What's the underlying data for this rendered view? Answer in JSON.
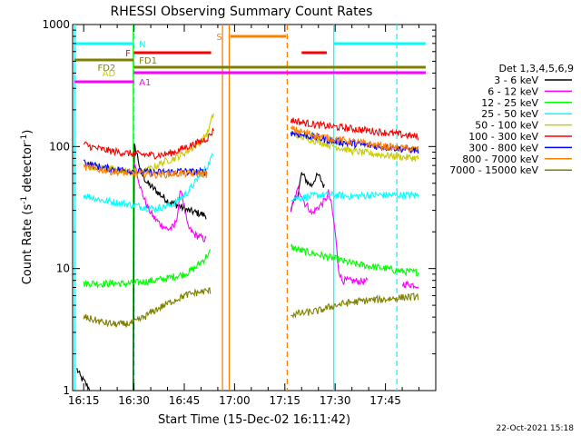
{
  "chart_data": {
    "type": "line",
    "title": "RHESSI Observing Summary Count Rates",
    "xlabel": "Start Time (15-Dec-02 16:11:42)",
    "ylabel": "Count Rate (s",
    "ylabel_sup": "-1",
    "ylabel_mid": " detector",
    "ylabel_end": ")",
    "x_unit": "minutes of day (UT), 15-Dec-2002",
    "xlim": [
      971.7,
      1080
    ],
    "ylim": [
      1,
      1000
    ],
    "y_scale": "log",
    "x_ticks": [
      {
        "t": 975,
        "label": "16:15"
      },
      {
        "t": 990,
        "label": "16:30"
      },
      {
        "t": 1005,
        "label": "16:45"
      },
      {
        "t": 1020,
        "label": "17:00"
      },
      {
        "t": 1035,
        "label": "17:15"
      },
      {
        "t": 1050,
        "label": "17:30"
      },
      {
        "t": 1065,
        "label": "17:45"
      }
    ],
    "y_ticks": [
      {
        "v": 1,
        "label": "1"
      },
      {
        "v": 10,
        "label": "10"
      },
      {
        "v": 100,
        "label": "100"
      },
      {
        "v": 1000,
        "label": "1000"
      }
    ],
    "legend_title": "Det 1,3,4,5,6,9",
    "legend_position": "right",
    "timestamp": "22-Oct-2021 15:18",
    "gap_ranges": [
      [
        1017.5,
        1036.8
      ]
    ],
    "series": [
      {
        "name": "3 - 6 keV",
        "color": "#000000",
        "points": [
          [
            973,
            1.5
          ],
          [
            974,
            1.3
          ],
          [
            975,
            1.2
          ],
          [
            976,
            1.1
          ],
          [
            977,
            1.0
          ],
          [
            989.8,
            1.0
          ],
          [
            990.1,
            100
          ],
          [
            991,
            85
          ],
          [
            992,
            62
          ],
          [
            994,
            50
          ],
          [
            996,
            45
          ],
          [
            998,
            40
          ],
          [
            1000,
            36
          ],
          [
            1002,
            34
          ],
          [
            1004,
            32
          ],
          [
            1006,
            30
          ],
          [
            1008,
            29
          ],
          [
            1010,
            28
          ],
          [
            1011.7,
            27
          ],
          [
            1036.8,
            30
          ],
          [
            1038,
            36
          ],
          [
            1039,
            42
          ],
          [
            1040,
            60
          ],
          [
            1041,
            55
          ],
          [
            1042,
            50
          ],
          [
            1043,
            48
          ],
          [
            1044,
            55
          ],
          [
            1045,
            58
          ],
          [
            1046,
            52
          ],
          [
            1047,
            45
          ]
        ]
      },
      {
        "name": "6 - 12 keV",
        "color": "#ff00ff",
        "points": [
          [
            990.1,
            75
          ],
          [
            991,
            60
          ],
          [
            992,
            45
          ],
          [
            994,
            32
          ],
          [
            996,
            26
          ],
          [
            998,
            23
          ],
          [
            1000,
            21
          ],
          [
            1002,
            22
          ],
          [
            1003,
            28
          ],
          [
            1004,
            46
          ],
          [
            1005,
            32
          ],
          [
            1006,
            22
          ],
          [
            1008,
            19
          ],
          [
            1010,
            18
          ],
          [
            1011.7,
            17
          ],
          [
            1036.8,
            30
          ],
          [
            1038,
            38
          ],
          [
            1039,
            45
          ],
          [
            1040,
            40
          ],
          [
            1041,
            34
          ],
          [
            1042,
            32
          ],
          [
            1043,
            28
          ],
          [
            1044,
            30
          ],
          [
            1046,
            34
          ],
          [
            1047,
            36
          ],
          [
            1048,
            42
          ],
          [
            1049,
            32
          ],
          [
            1050,
            20
          ],
          [
            1051,
            10
          ],
          [
            1052,
            8
          ],
          [
            1060,
            7.8
          ],
          [
            1070,
            7.5
          ],
          [
            1075,
            7.3
          ]
        ]
      },
      {
        "name": "12 - 25 keV",
        "color": "#00ff00",
        "points": [
          [
            975,
            7.5
          ],
          [
            978,
            7.6
          ],
          [
            981,
            7.5
          ],
          [
            984,
            7.6
          ],
          [
            987,
            7.5
          ],
          [
            990,
            7.6
          ],
          [
            993,
            7.8
          ],
          [
            996,
            8.0
          ],
          [
            999,
            8.2
          ],
          [
            1002,
            8.6
          ],
          [
            1005,
            9.0
          ],
          [
            1008,
            10
          ],
          [
            1011,
            12
          ],
          [
            1012,
            13
          ],
          [
            1013,
            14
          ],
          [
            1036.8,
            15
          ],
          [
            1040,
            14
          ],
          [
            1045,
            13
          ],
          [
            1050,
            12
          ],
          [
            1055,
            11
          ],
          [
            1060,
            10.5
          ],
          [
            1065,
            10
          ],
          [
            1070,
            9.5
          ],
          [
            1075,
            9.3
          ]
        ]
      },
      {
        "name": "25 - 50 keV",
        "color": "#00ffff",
        "points": [
          [
            975,
            40
          ],
          [
            978,
            38
          ],
          [
            981,
            36
          ],
          [
            984,
            35
          ],
          [
            987,
            34
          ],
          [
            990,
            33
          ],
          [
            993,
            32
          ],
          [
            996,
            31
          ],
          [
            999,
            32
          ],
          [
            1002,
            34
          ],
          [
            1004,
            38
          ],
          [
            1006,
            42
          ],
          [
            1008,
            50
          ],
          [
            1010,
            60
          ],
          [
            1012,
            70
          ],
          [
            1013,
            80
          ],
          [
            1014,
            88
          ],
          [
            1036.8,
            38
          ],
          [
            1040,
            38
          ],
          [
            1045,
            40
          ],
          [
            1050,
            40
          ],
          [
            1055,
            39
          ],
          [
            1060,
            40
          ],
          [
            1065,
            40
          ],
          [
            1070,
            40
          ],
          [
            1075,
            40
          ]
        ]
      },
      {
        "name": "50 - 100 keV",
        "color": "#cccc00",
        "points": [
          [
            975,
            72
          ],
          [
            978,
            68
          ],
          [
            981,
            66
          ],
          [
            984,
            65
          ],
          [
            987,
            63
          ],
          [
            990,
            62
          ],
          [
            993,
            62
          ],
          [
            996,
            68
          ],
          [
            999,
            75
          ],
          [
            1002,
            80
          ],
          [
            1004,
            85
          ],
          [
            1006,
            92
          ],
          [
            1008,
            100
          ],
          [
            1010,
            110
          ],
          [
            1012,
            130
          ],
          [
            1013,
            160
          ],
          [
            1014,
            200
          ],
          [
            1036.8,
            130
          ],
          [
            1040,
            120
          ],
          [
            1045,
            110
          ],
          [
            1050,
            100
          ],
          [
            1055,
            92
          ],
          [
            1060,
            88
          ],
          [
            1065,
            85
          ],
          [
            1070,
            82
          ],
          [
            1075,
            80
          ]
        ]
      },
      {
        "name": "100 - 300 keV",
        "color": "#ff0000",
        "points": [
          [
            975,
            105
          ],
          [
            978,
            98
          ],
          [
            981,
            94
          ],
          [
            984,
            91
          ],
          [
            987,
            89
          ],
          [
            990,
            87
          ],
          [
            993,
            86
          ],
          [
            996,
            85
          ],
          [
            999,
            86
          ],
          [
            1002,
            90
          ],
          [
            1004,
            95
          ],
          [
            1006,
            100
          ],
          [
            1008,
            105
          ],
          [
            1010,
            110
          ],
          [
            1012,
            118
          ],
          [
            1013,
            128
          ],
          [
            1014,
            140
          ],
          [
            1036.8,
            165
          ],
          [
            1040,
            158
          ],
          [
            1045,
            150
          ],
          [
            1050,
            145
          ],
          [
            1055,
            140
          ],
          [
            1060,
            135
          ],
          [
            1065,
            130
          ],
          [
            1070,
            125
          ],
          [
            1075,
            120
          ]
        ]
      },
      {
        "name": "300 - 800 keV",
        "color": "#0000ff",
        "points": [
          [
            975,
            75
          ],
          [
            978,
            70
          ],
          [
            981,
            67
          ],
          [
            984,
            65
          ],
          [
            987,
            64
          ],
          [
            990,
            63
          ],
          [
            993,
            62
          ],
          [
            996,
            61
          ],
          [
            999,
            62
          ],
          [
            1002,
            62
          ],
          [
            1004,
            63
          ],
          [
            1006,
            62
          ],
          [
            1008,
            62
          ],
          [
            1010,
            62
          ],
          [
            1012,
            62
          ],
          [
            1036.8,
            130
          ],
          [
            1040,
            125
          ],
          [
            1045,
            118
          ],
          [
            1050,
            110
          ],
          [
            1055,
            106
          ],
          [
            1060,
            102
          ],
          [
            1065,
            99
          ],
          [
            1070,
            96
          ],
          [
            1075,
            93
          ]
        ]
      },
      {
        "name": "800 - 7000 keV",
        "color": "#ff8000",
        "points": [
          [
            975,
            68
          ],
          [
            978,
            66
          ],
          [
            981,
            64
          ],
          [
            984,
            62
          ],
          [
            987,
            61
          ],
          [
            990,
            60
          ],
          [
            993,
            60
          ],
          [
            996,
            59
          ],
          [
            999,
            59
          ],
          [
            1002,
            60
          ],
          [
            1004,
            60
          ],
          [
            1006,
            60
          ],
          [
            1008,
            60
          ],
          [
            1010,
            60
          ],
          [
            1012,
            59
          ],
          [
            1036.8,
            140
          ],
          [
            1040,
            132
          ],
          [
            1045,
            122
          ],
          [
            1050,
            115
          ],
          [
            1055,
            110
          ],
          [
            1060,
            105
          ],
          [
            1065,
            100
          ],
          [
            1070,
            97
          ],
          [
            1075,
            95
          ]
        ]
      },
      {
        "name": "7000 - 15000 keV",
        "color": "#808000",
        "points": [
          [
            975,
            4.0
          ],
          [
            978,
            3.8
          ],
          [
            981,
            3.6
          ],
          [
            984,
            3.5
          ],
          [
            987,
            3.5
          ],
          [
            990,
            3.6
          ],
          [
            993,
            4.0
          ],
          [
            996,
            4.5
          ],
          [
            999,
            5.0
          ],
          [
            1002,
            5.5
          ],
          [
            1005,
            6.0
          ],
          [
            1008,
            6.3
          ],
          [
            1011,
            6.5
          ],
          [
            1013,
            6.6
          ],
          [
            1036.8,
            4.2
          ],
          [
            1040,
            4.3
          ],
          [
            1045,
            4.5
          ],
          [
            1050,
            5.0
          ],
          [
            1055,
            5.3
          ],
          [
            1060,
            5.5
          ],
          [
            1065,
            5.6
          ],
          [
            1070,
            5.8
          ],
          [
            1075,
            5.9
          ]
        ]
      }
    ],
    "vlines": [
      {
        "t": 972.3,
        "color": "#00ffff",
        "style": "solid"
      },
      {
        "t": 990.0,
        "color": "#00ffff",
        "style": "dash"
      },
      {
        "t": 989.8,
        "color": "#00ff00",
        "style": "solid"
      },
      {
        "t": 1016.4,
        "color": "#ff8000",
        "style": "solid"
      },
      {
        "t": 1018.4,
        "color": "#ff8000",
        "style": "solid"
      },
      {
        "t": 1035.7,
        "color": "#ff8000",
        "style": "dash"
      },
      {
        "t": 1049.6,
        "color": "#00ffff",
        "style": "solid"
      },
      {
        "t": 1068.4,
        "color": "#00ffff",
        "style": "dash"
      }
    ],
    "flags": [
      {
        "label": "N",
        "label_t": 991.5,
        "label_color": "#00ffff",
        "y": 48,
        "color": "#00ffff",
        "segments": [
          [
            972.3,
            990.0
          ],
          [
            1049.6,
            1077.0
          ]
        ]
      },
      {
        "label": "F",
        "label_t": 989.0,
        "label_color": "#ff0000",
        "y": 58,
        "color": "#ff0000",
        "segments": [
          [
            990.0,
            1013.0
          ],
          [
            1040.0,
            1047.5
          ]
        ]
      },
      {
        "label": "FD1",
        "label_t": 991.5,
        "label_color": "#808000",
        "y": 66,
        "color": "#808000",
        "segments": [
          [
            972.3,
            990.0
          ]
        ]
      },
      {
        "label": "FD2",
        "label_t": 984.5,
        "label_color": "#808000",
        "y": 74,
        "color": "#808000",
        "segments": [
          [
            990.0,
            1077.0
          ]
        ]
      },
      {
        "label": "AD",
        "label_t": 984.5,
        "label_color": "#cccc00",
        "y": 80,
        "color": "#ff00ff",
        "segments": [
          [
            990.0,
            1077.0
          ]
        ]
      },
      {
        "label": "A1",
        "label_t": 991.5,
        "label_color": "#ff00ff",
        "y": 90,
        "color": "#ff00ff",
        "segments": [
          [
            972.3,
            990.0
          ]
        ]
      },
      {
        "label": "S",
        "label_t": 1016.3,
        "label_color": "#ff8000",
        "y": 40,
        "color": "#ff8000",
        "segments": [
          [
            1018.8,
            1035.4
          ]
        ]
      }
    ]
  }
}
